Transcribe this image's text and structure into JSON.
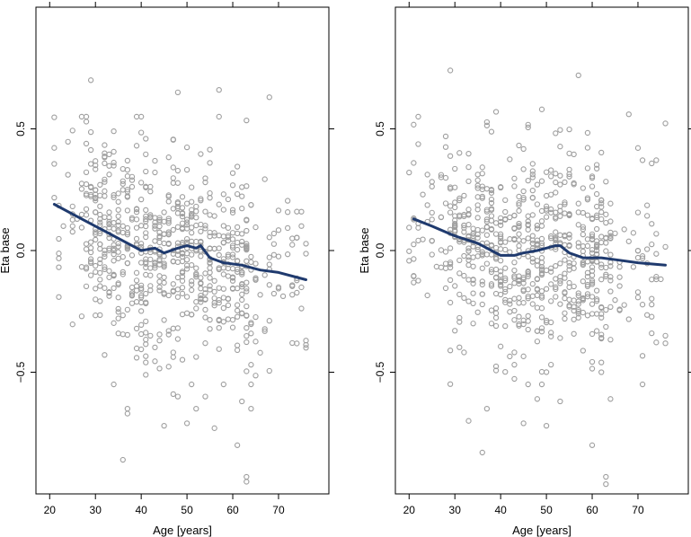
{
  "chart_data": [
    {
      "type": "scatter",
      "title": "",
      "xlabel": "Age [years]",
      "ylabel": "Eta base",
      "xlim": [
        17,
        81
      ],
      "ylim": [
        -1.0,
        1.0
      ],
      "xticks": [
        20,
        30,
        40,
        50,
        60,
        70
      ],
      "yticks": [
        -0.5,
        0.0,
        0.5
      ],
      "x_tick_labels": [
        "20",
        "30",
        "40",
        "50",
        "60",
        "70"
      ],
      "y_tick_labels": [
        "−0.5",
        "0.0",
        "0.5"
      ],
      "grid": false,
      "point_color": "#9e9e9e",
      "trend_color": "#1f3a6e",
      "notable_points": {
        "x": [
          29,
          36,
          37,
          37,
          41,
          42,
          45,
          47,
          48,
          48,
          50,
          52,
          54,
          56,
          57,
          61,
          62,
          63,
          63,
          64,
          66,
          68,
          73,
          76
        ],
        "y": [
          0.7,
          -0.86,
          -0.65,
          -0.67,
          -0.46,
          -0.35,
          -0.72,
          -0.59,
          -0.6,
          0.65,
          -0.71,
          -0.65,
          -0.6,
          -0.73,
          0.66,
          -0.8,
          -0.62,
          -0.95,
          -0.93,
          -0.65,
          -0.42,
          0.63,
          -0.38,
          -0.37
        ]
      },
      "trend": {
        "x": [
          21,
          25,
          30,
          35,
          38,
          40,
          43,
          45,
          48,
          50,
          52,
          53,
          55,
          58,
          62,
          66,
          70,
          76
        ],
        "y": [
          0.19,
          0.15,
          0.1,
          0.05,
          0.02,
          0.0,
          0.01,
          -0.01,
          0.01,
          0.02,
          0.01,
          0.02,
          -0.03,
          -0.05,
          -0.06,
          -0.08,
          -0.09,
          -0.12
        ]
      }
    },
    {
      "type": "scatter",
      "title": "",
      "xlabel": "Age [years]",
      "ylabel": "Eta base",
      "xlim": [
        17,
        81
      ],
      "ylim": [
        -1.0,
        1.0
      ],
      "xticks": [
        20,
        30,
        40,
        50,
        60,
        70
      ],
      "yticks": [
        -0.5,
        0.0,
        0.5
      ],
      "x_tick_labels": [
        "20",
        "30",
        "40",
        "50",
        "60",
        "70"
      ],
      "y_tick_labels": [
        "−0.5",
        "0.0",
        "0.5"
      ],
      "grid": false,
      "point_color": "#9e9e9e",
      "trend_color": "#1f3a6e",
      "notable_points": {
        "x": [
          29,
          33,
          36,
          37,
          39,
          45,
          48,
          49,
          50,
          53,
          57,
          60,
          62,
          63,
          63,
          64,
          68,
          76
        ],
        "y": [
          0.74,
          -0.7,
          -0.83,
          -0.65,
          0.57,
          -0.71,
          -0.61,
          0.58,
          -0.72,
          -0.62,
          0.72,
          -0.8,
          -0.5,
          -0.93,
          -0.96,
          -0.61,
          0.56,
          -0.35
        ]
      },
      "trend": {
        "x": [
          21,
          25,
          30,
          35,
          38,
          40,
          43,
          45,
          48,
          50,
          52,
          53,
          55,
          58,
          62,
          66,
          70,
          76
        ],
        "y": [
          0.13,
          0.1,
          0.06,
          0.03,
          0.0,
          -0.02,
          -0.02,
          -0.01,
          0.0,
          0.01,
          0.02,
          0.02,
          -0.01,
          -0.03,
          -0.03,
          -0.04,
          -0.05,
          -0.06
        ]
      }
    }
  ]
}
